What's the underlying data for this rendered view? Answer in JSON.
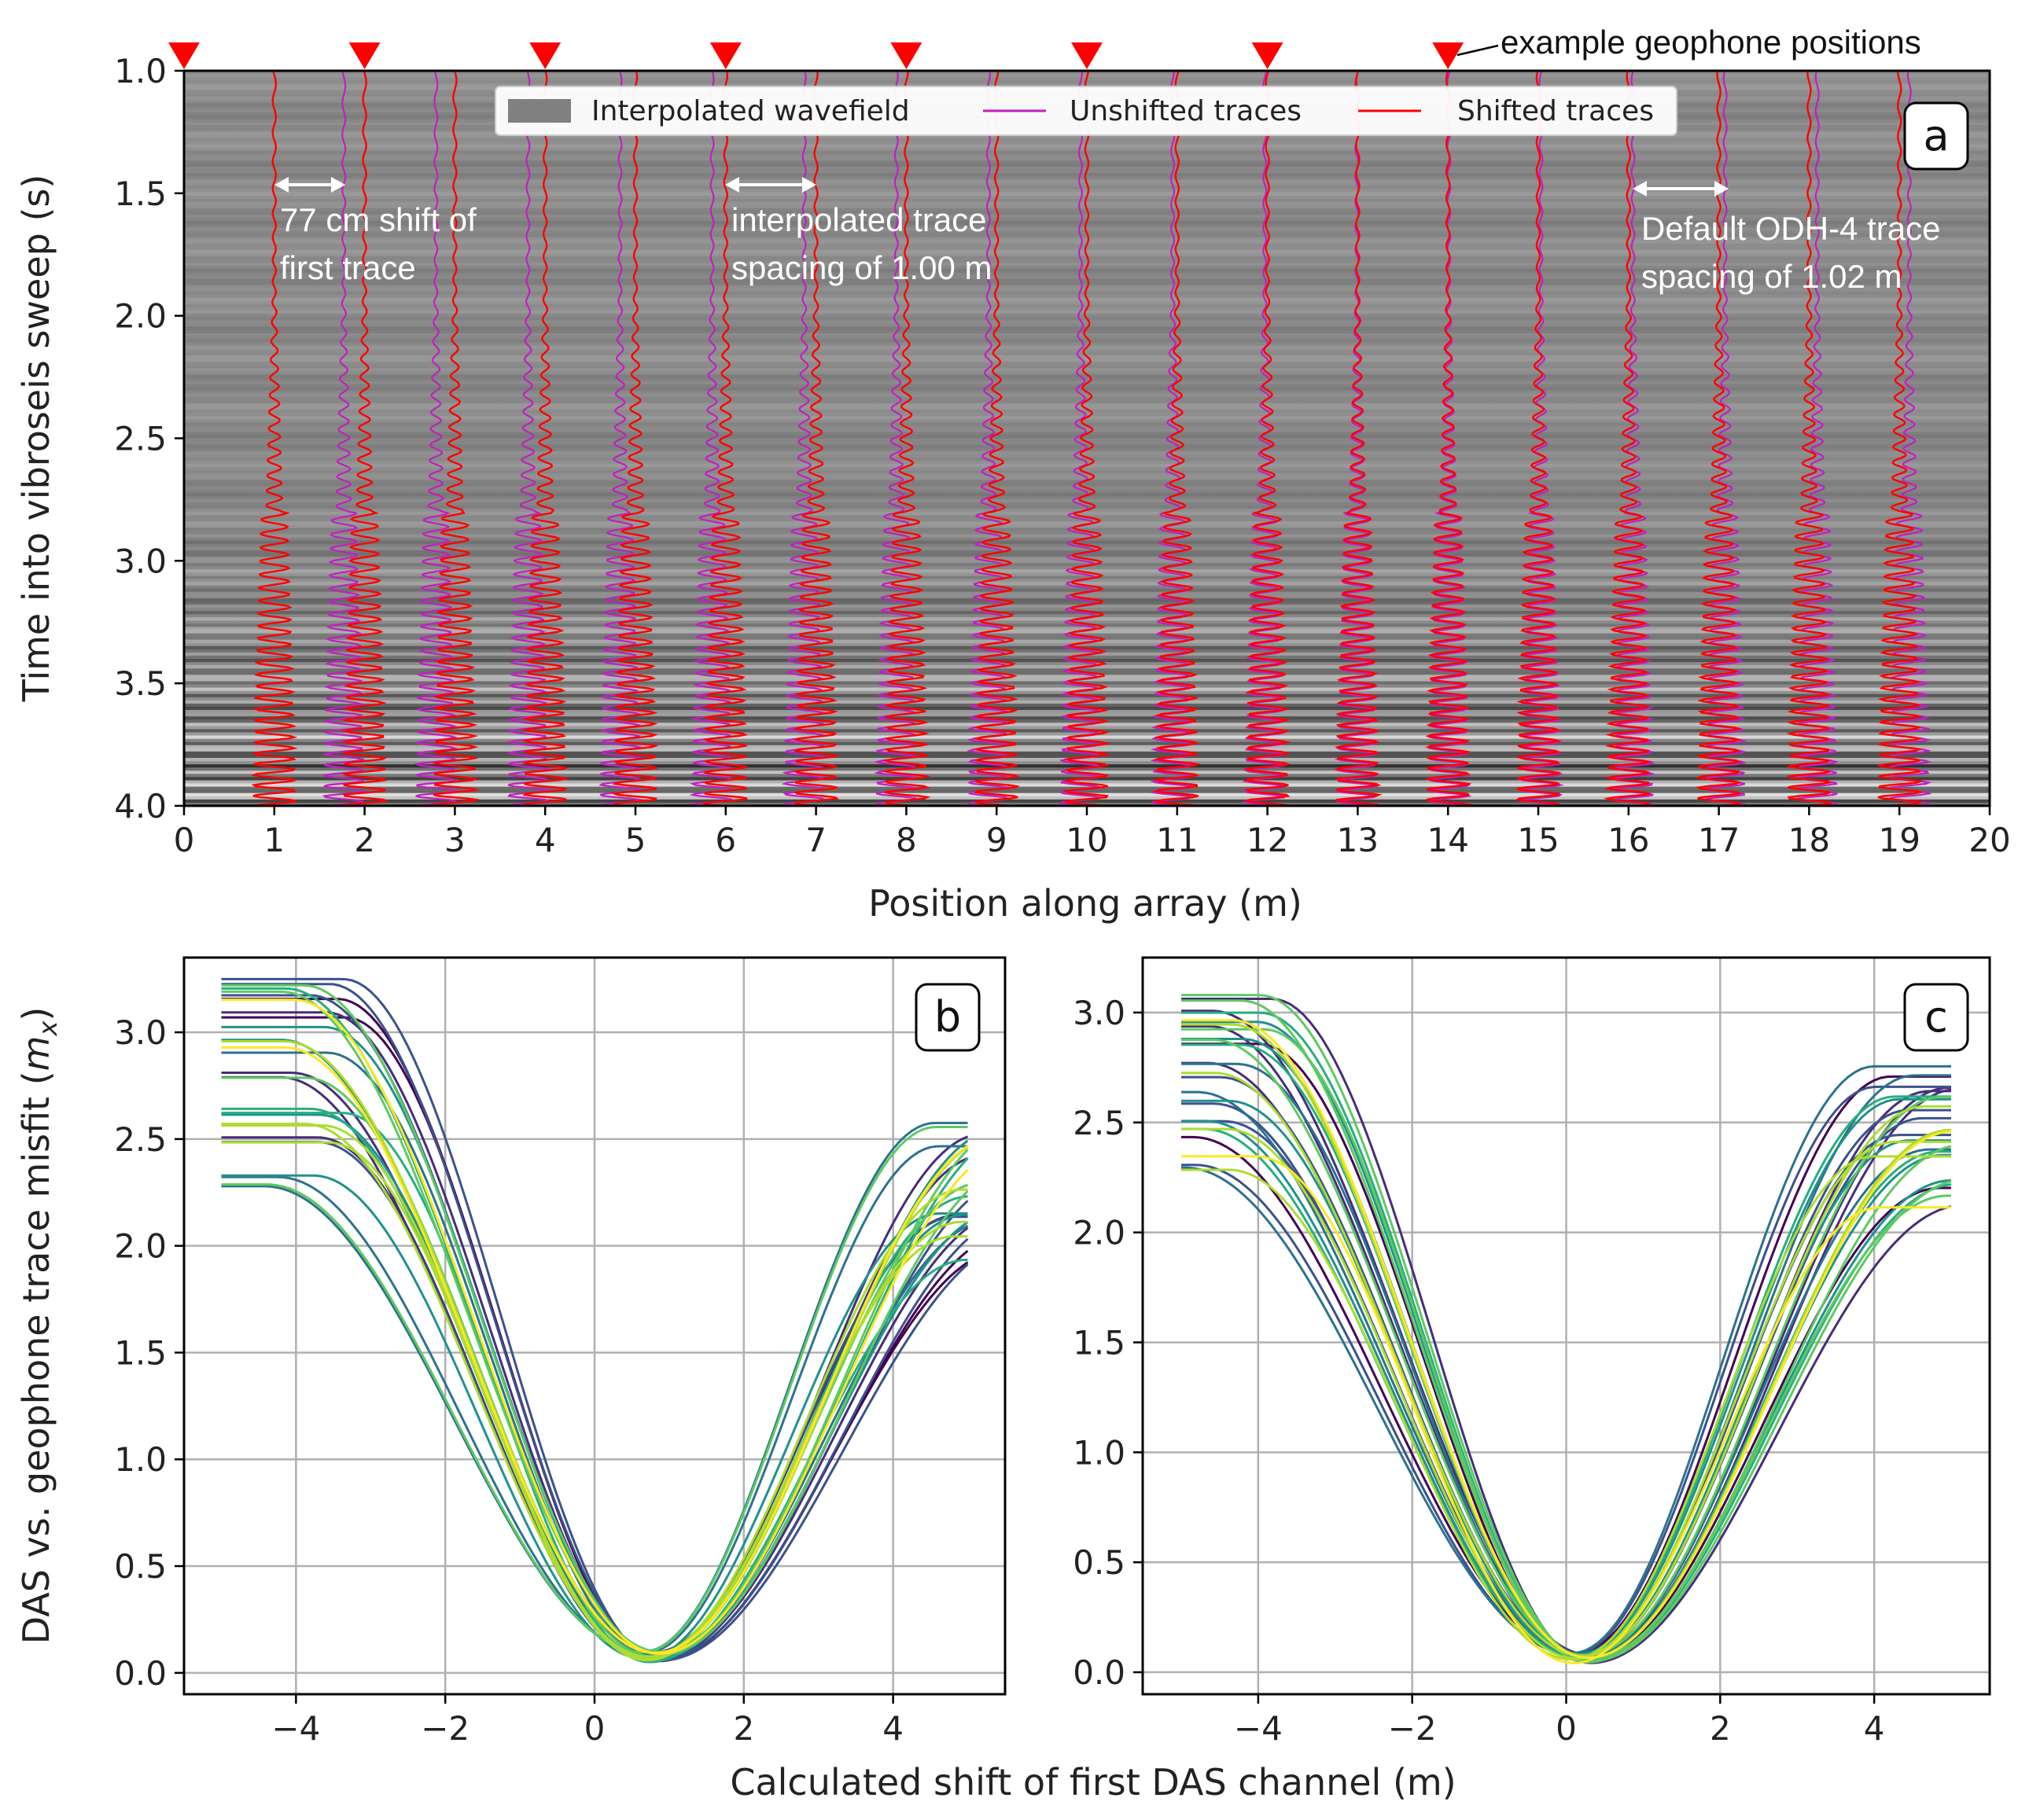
{
  "chart_data": [
    {
      "panel": "a",
      "type": "line",
      "xlabel": "Position along array (m)",
      "ylabel": "Time into vibroseis sweep (s)",
      "xlim": [
        0,
        20
      ],
      "ylim": [
        4.0,
        1.0
      ],
      "xticks": [
        "0",
        "1",
        "2",
        "3",
        "4",
        "5",
        "6",
        "7",
        "8",
        "9",
        "10",
        "11",
        "12",
        "13",
        "14",
        "15",
        "16",
        "17",
        "18",
        "19",
        "20"
      ],
      "yticks": [
        "1.0",
        "1.5",
        "2.0",
        "2.5",
        "3.0",
        "3.5",
        "4.0"
      ],
      "legend": [
        "Interpolated wavefield",
        "Unshifted traces",
        "Shifted traces"
      ],
      "geophone_positions": [
        0,
        2,
        4,
        6,
        8,
        10,
        12,
        14
      ],
      "series": [
        {
          "name": "Shifted traces",
          "x": [
            1.0,
            2.0,
            3.0,
            4.0,
            5.0,
            6.0,
            7.0,
            8.0,
            9.0,
            10.0,
            11.0,
            12.0,
            13.0,
            14.0,
            15.0,
            16.0,
            17.0,
            18.0,
            19.0
          ]
        },
        {
          "name": "Unshifted traces",
          "x": [
            1.77,
            2.79,
            3.81,
            4.83,
            5.85,
            6.87,
            7.89,
            8.91,
            9.93,
            10.95,
            11.97,
            12.99,
            14.01,
            15.03,
            16.05,
            17.07,
            18.09,
            19.11
          ]
        }
      ],
      "annotations": {
        "geophone_note": "example geophone positions",
        "shift": [
          "77 cm shift of",
          "first trace"
        ],
        "interp": [
          "interpolated trace",
          "spacing of 1.00 m"
        ],
        "default": [
          "Default ODH-4 trace",
          "spacing of 1.02 m"
        ]
      },
      "panel_label": "a"
    },
    {
      "panel": "b",
      "type": "line",
      "xlabel": "",
      "ylabel": "DAS vs. geophone trace misfit (m_x)",
      "xlim": [
        -5.5,
        5.5
      ],
      "ylim": [
        -0.1,
        3.35
      ],
      "xticks": [
        "−4",
        "−2",
        "0",
        "2",
        "4"
      ],
      "yticks": [
        "0.0",
        "0.5",
        "1.0",
        "1.5",
        "2.0",
        "2.5",
        "3.0"
      ],
      "minimum_at": 0.77,
      "minimum_value": 0.05,
      "n_curves": 30,
      "left_values_range": [
        2.27,
        3.25
      ],
      "right_values_range": [
        1.93,
        2.6
      ],
      "panel_label": "b"
    },
    {
      "panel": "c",
      "type": "line",
      "xlabel": "",
      "ylabel": "",
      "xlim": [
        -5.5,
        5.5
      ],
      "ylim": [
        -0.1,
        3.25
      ],
      "xticks": [
        "−4",
        "−2",
        "0",
        "2",
        "4"
      ],
      "yticks": [
        "0.0",
        "0.5",
        "1.0",
        "1.5",
        "2.0",
        "2.5",
        "3.0"
      ],
      "minimum_at": 0.2,
      "minimum_value": 0.04,
      "n_curves": 30,
      "left_values_range": [
        2.28,
        3.1
      ],
      "right_values_range": [
        2.1,
        2.8
      ],
      "panel_label": "c"
    }
  ],
  "shared_xlabel": "Calculated shift of first DAS channel (m)",
  "ylabel_b_prefix": "DAS vs. geophone trace misfit (",
  "ylabel_b_var": "m",
  "ylabel_b_sub": "x",
  "ylabel_b_suffix": ")",
  "colors": {
    "shifted": "#ff0000",
    "unshifted": "#c020c0",
    "marker": "#ff0000",
    "grid": "#b0b0b0",
    "viridis": [
      "#440154",
      "#472d7b",
      "#3b528b",
      "#2c728e",
      "#21918c",
      "#28ae80",
      "#5ec962",
      "#addc30",
      "#fde725"
    ]
  }
}
